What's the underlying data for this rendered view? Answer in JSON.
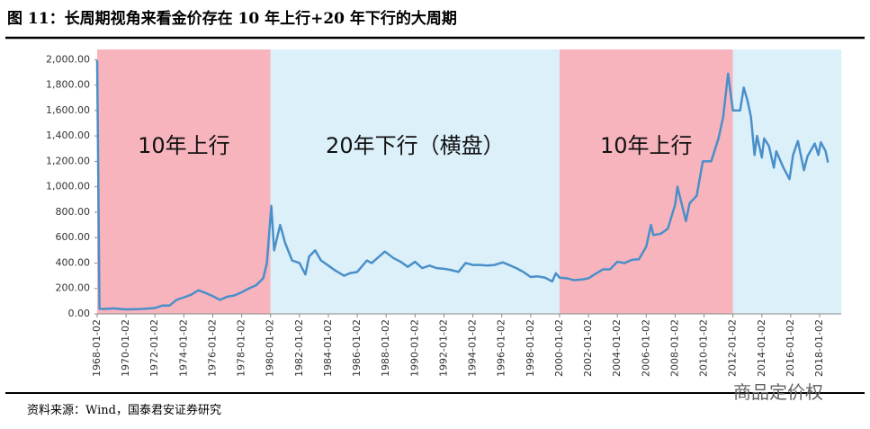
{
  "chart_data": {
    "type": "line",
    "title": "图 11：长周期视角来看金价存在 10 年上行+20 年下行的大周期",
    "source": "资料来源：Wind，国泰君安证券研究",
    "watermark": "商品定价权",
    "x": [
      "1968-01-02",
      "1968-03-01",
      "1968-07-01",
      "1969-03-01",
      "1970-01-02",
      "1971-01-02",
      "1972-01-02",
      "1972-07-01",
      "1973-01-02",
      "1973-07-01",
      "1974-01-02",
      "1974-07-01",
      "1975-01-02",
      "1975-07-01",
      "1976-01-02",
      "1976-07-01",
      "1977-01-02",
      "1977-07-01",
      "1978-01-02",
      "1978-07-01",
      "1979-01-02",
      "1979-07-01",
      "1979-10-01",
      "1980-01-21",
      "1980-04-01",
      "1980-09-01",
      "1981-01-02",
      "1981-07-01",
      "1982-01-02",
      "1982-06-01",
      "1982-09-01",
      "1983-02-01",
      "1983-07-01",
      "1984-01-02",
      "1984-07-01",
      "1985-02-01",
      "1985-07-01",
      "1986-01-02",
      "1986-09-01",
      "1987-01-02",
      "1987-12-01",
      "1988-07-01",
      "1989-01-02",
      "1989-07-01",
      "1990-01-02",
      "1990-07-01",
      "1991-01-02",
      "1991-07-01",
      "1992-01-02",
      "1992-07-01",
      "1993-01-02",
      "1993-07-01",
      "1994-01-02",
      "1994-07-01",
      "1995-01-02",
      "1995-07-01",
      "1996-02-01",
      "1996-07-01",
      "1997-01-02",
      "1997-07-01",
      "1998-01-02",
      "1998-07-01",
      "1999-01-02",
      "1999-07-01",
      "1999-10-01",
      "2000-01-02",
      "2000-07-01",
      "2001-01-02",
      "2001-07-01",
      "2002-01-02",
      "2002-07-01",
      "2003-01-02",
      "2003-07-01",
      "2004-01-02",
      "2004-07-01",
      "2005-01-02",
      "2005-07-01",
      "2006-01-02",
      "2006-05-01",
      "2006-07-01",
      "2007-01-02",
      "2007-07-01",
      "2008-01-02",
      "2008-03-01",
      "2008-10-01",
      "2009-01-02",
      "2009-07-01",
      "2009-12-01",
      "2010-07-01",
      "2011-01-02",
      "2011-05-01",
      "2011-09-01",
      "2012-01-02",
      "2012-07-01",
      "2012-10-01",
      "2013-01-02",
      "2013-04-01",
      "2013-07-01",
      "2013-09-01",
      "2014-01-02",
      "2014-03-01",
      "2014-07-01",
      "2014-11-01",
      "2015-01-02",
      "2015-07-01",
      "2015-12-01",
      "2016-03-01",
      "2016-07-01",
      "2016-12-01",
      "2017-03-01",
      "2017-09-01",
      "2017-12-01",
      "2018-02-01",
      "2018-06-01",
      "2018-08-01"
    ],
    "series": [
      {
        "color": "#4a8fc9",
        "values": [
          1995,
          40,
          39,
          43,
          35,
          38,
          46,
          65,
          65,
          110,
          130,
          150,
          185,
          165,
          140,
          110,
          135,
          145,
          170,
          200,
          225,
          280,
          400,
          850,
          500,
          700,
          560,
          420,
          400,
          310,
          450,
          500,
          420,
          380,
          340,
          300,
          320,
          330,
          420,
          400,
          490,
          440,
          410,
          370,
          410,
          360,
          380,
          360,
          355,
          345,
          330,
          400,
          385,
          385,
          380,
          385,
          405,
          385,
          360,
          330,
          290,
          295,
          285,
          255,
          320,
          285,
          280,
          265,
          270,
          280,
          315,
          350,
          350,
          410,
          400,
          425,
          430,
          530,
          700,
          620,
          630,
          670,
          860,
          1000,
          730,
          870,
          930,
          1200,
          1200,
          1380,
          1550,
          1890,
          1600,
          1600,
          1780,
          1680,
          1550,
          1250,
          1400,
          1230,
          1380,
          1320,
          1150,
          1280,
          1150,
          1060,
          1250,
          1360,
          1130,
          1240,
          1340,
          1250,
          1350,
          1280,
          1190
        ]
      }
    ],
    "bands": [
      {
        "start": "1968-01-02",
        "end": "1980-01-02",
        "color": "#f7b4bd",
        "label": "10年上行"
      },
      {
        "start": "1980-01-02",
        "end": "2000-01-02",
        "color": "#dcf0fa",
        "label": "20年下行（横盘）"
      },
      {
        "start": "2000-01-02",
        "end": "2012-01-02",
        "color": "#f7b4bd",
        "label": "10年上行"
      },
      {
        "start": "2012-01-02",
        "end": "2019-07-01",
        "color": "#dcf0fa"
      }
    ],
    "xlim": [
      "1968-01-02",
      "2019-07-01"
    ],
    "xticks": [
      "1968-01-02",
      "1970-01-02",
      "1972-01-02",
      "1974-01-02",
      "1976-01-02",
      "1978-01-02",
      "1980-01-02",
      "1982-01-02",
      "1984-01-02",
      "1986-01-02",
      "1988-01-02",
      "1990-01-02",
      "1992-01-02",
      "1994-01-02",
      "1996-01-02",
      "1998-01-02",
      "2000-01-02",
      "2002-01-02",
      "2004-01-02",
      "2006-01-02",
      "2008-01-02",
      "2010-01-02",
      "2012-01-02",
      "2014-01-02",
      "2016-01-02",
      "2018-01-02"
    ],
    "ylim": [
      0,
      2080
    ],
    "yticks": [
      {
        "value": 0,
        "label": "0.00"
      },
      {
        "value": 200,
        "label": "200.00"
      },
      {
        "value": 400,
        "label": "400.00"
      },
      {
        "value": 600,
        "label": "600.00"
      },
      {
        "value": 800,
        "label": "800.00"
      },
      {
        "value": 1000,
        "label": "1,000.00"
      },
      {
        "value": 1200,
        "label": "1,200.00"
      },
      {
        "value": 1400,
        "label": "1,400.00"
      },
      {
        "value": 1600,
        "label": "1,600.00"
      },
      {
        "value": 1800,
        "label": "1,800.00"
      },
      {
        "value": 2000,
        "label": "2,000.00"
      }
    ]
  }
}
